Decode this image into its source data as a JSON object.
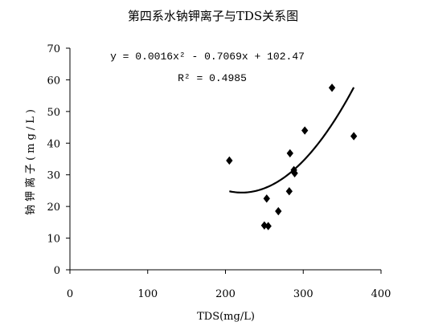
{
  "chart_data": {
    "type": "scatter",
    "title": "第四系水钠钾离子与TDS关系图",
    "xlabel": "TDS(mg/L)",
    "ylabel": "钠钾离子(mg/L)",
    "xlim": [
      0,
      400
    ],
    "ylim": [
      0,
      70
    ],
    "xticks": [
      0,
      100,
      200,
      300,
      400
    ],
    "yticks": [
      0,
      10,
      20,
      30,
      40,
      50,
      60,
      70
    ],
    "grid": false,
    "equation": "y = 0.0016x² - 0.7069x + 102.47",
    "r_squared": "R² = 0.4985",
    "trendline": {
      "type": "polynomial",
      "a": 0.0016,
      "b": -0.7069,
      "c": 102.47,
      "x_range": [
        205,
        365
      ]
    },
    "points": [
      {
        "x": 205,
        "y": 34.5
      },
      {
        "x": 250,
        "y": 14.0
      },
      {
        "x": 253,
        "y": 22.5
      },
      {
        "x": 255,
        "y": 13.8
      },
      {
        "x": 268,
        "y": 18.5
      },
      {
        "x": 282,
        "y": 24.8
      },
      {
        "x": 283,
        "y": 36.8
      },
      {
        "x": 288,
        "y": 31.5
      },
      {
        "x": 289,
        "y": 30.5
      },
      {
        "x": 302,
        "y": 44.0
      },
      {
        "x": 337,
        "y": 57.5
      },
      {
        "x": 365,
        "y": 42.2
      }
    ],
    "colors": {
      "marker": "#000000",
      "line": "#000000",
      "axis": "#000000"
    }
  }
}
